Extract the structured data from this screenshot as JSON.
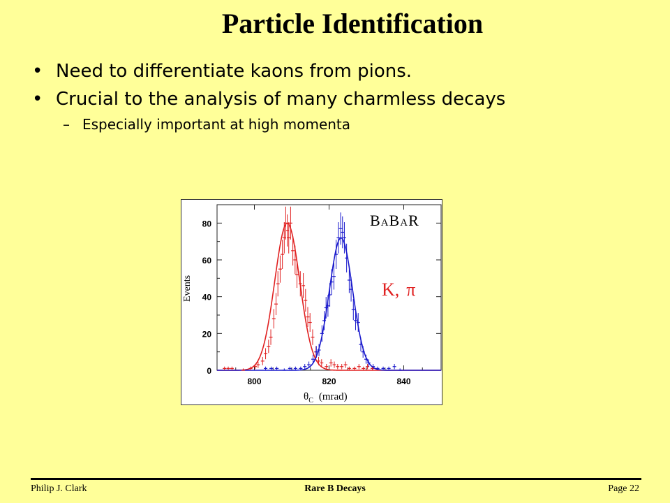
{
  "slide": {
    "title": "Particle Identification",
    "bullets": [
      "Need to differentiate kaons from pions.",
      "Crucial to the analysis of many charmless decays"
    ],
    "sub_bullet": "Especially important at high momenta",
    "footer": {
      "left": "Philip J. Clark",
      "center": "Rare B Decays",
      "right": "Page 22"
    }
  },
  "chart_data": {
    "type": "scatter",
    "xlabel_symbol": "θ",
    "xlabel_subscript": "C",
    "xlabel_unit": "(mrad)",
    "ylabel": "Events",
    "xlim": [
      790,
      850
    ],
    "ylim": [
      0,
      90
    ],
    "x_ticks": [
      800,
      820,
      840
    ],
    "y_ticks": [
      0,
      20,
      40,
      60,
      80
    ],
    "logo": "BABAR",
    "annotation": {
      "kaon": "K",
      "separator": ",",
      "pion": "π"
    },
    "colors": {
      "kaon": "#e02020",
      "pion": "#1a1acc"
    },
    "series": [
      {
        "name": "K",
        "fit": {
          "mean": 808.8,
          "sigma": 3.35,
          "amplitude": 80
        },
        "points": [
          [
            792,
            1
          ],
          [
            793,
            1
          ],
          [
            794,
            1
          ],
          [
            797,
            0
          ],
          [
            799,
            1
          ],
          [
            800.2,
            2
          ],
          [
            801,
            3
          ],
          [
            802.2,
            5
          ],
          [
            803,
            9
          ],
          [
            803.8,
            13
          ],
          [
            804.4,
            18
          ],
          [
            805.2,
            28
          ],
          [
            805.8,
            36
          ],
          [
            806.3,
            47
          ],
          [
            806.9,
            55
          ],
          [
            807.5,
            63
          ],
          [
            808,
            72
          ],
          [
            808.4,
            80
          ],
          [
            808.8,
            76
          ],
          [
            809.2,
            72
          ],
          [
            809.7,
            80
          ],
          [
            810.3,
            65
          ],
          [
            810.9,
            60
          ],
          [
            811.4,
            52
          ],
          [
            812.3,
            47
          ],
          [
            813.1,
            46
          ],
          [
            813.7,
            38
          ],
          [
            814.3,
            29
          ],
          [
            814.9,
            26
          ],
          [
            815.6,
            18
          ],
          [
            816.5,
            10
          ],
          [
            817.2,
            5
          ],
          [
            818,
            4
          ],
          [
            819.3,
            2
          ],
          [
            820.5,
            4
          ],
          [
            821.4,
            3
          ],
          [
            822.3,
            2
          ],
          [
            823.4,
            2
          ],
          [
            824.4,
            3
          ],
          [
            825.4,
            1
          ],
          [
            826.8,
            1
          ],
          [
            828,
            2
          ],
          [
            829.2,
            1
          ],
          [
            830.3,
            2
          ],
          [
            831.6,
            1
          ]
        ]
      },
      {
        "name": "π",
        "fit": {
          "mean": 823.2,
          "sigma": 3.1,
          "amplitude": 72
        },
        "points": [
          [
            803,
            1
          ],
          [
            804.5,
            1
          ],
          [
            806,
            1
          ],
          [
            808,
            0
          ],
          [
            809.5,
            1
          ],
          [
            811,
            1
          ],
          [
            812.4,
            1
          ],
          [
            813.5,
            2
          ],
          [
            814.6,
            3
          ],
          [
            815.7,
            6
          ],
          [
            816.6,
            10
          ],
          [
            817.3,
            11
          ],
          [
            818.1,
            20
          ],
          [
            818.7,
            27
          ],
          [
            819.2,
            34
          ],
          [
            819.7,
            35
          ],
          [
            820.2,
            41
          ],
          [
            820.7,
            48
          ],
          [
            821.3,
            51
          ],
          [
            821.9,
            63
          ],
          [
            822.5,
            72
          ],
          [
            823.1,
            77
          ],
          [
            823.6,
            75
          ],
          [
            824.1,
            72
          ],
          [
            824.7,
            61
          ],
          [
            825.4,
            49
          ],
          [
            825.9,
            44
          ],
          [
            826.5,
            33
          ],
          [
            827.1,
            27
          ],
          [
            827.8,
            26
          ],
          [
            828.5,
            14
          ],
          [
            829.1,
            10
          ],
          [
            829.9,
            6
          ],
          [
            830.6,
            4
          ],
          [
            831.8,
            2
          ],
          [
            833,
            1
          ],
          [
            834.5,
            1
          ],
          [
            836,
            1
          ],
          [
            837.5,
            2
          ],
          [
            839,
            0
          ]
        ]
      }
    ]
  }
}
